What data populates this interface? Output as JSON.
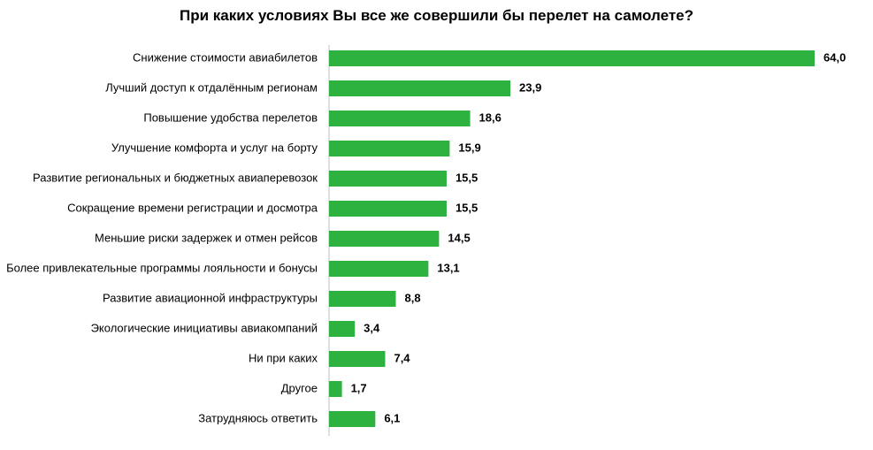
{
  "chart_data": {
    "type": "bar",
    "orientation": "horizontal",
    "title": "При каких условиях Вы все же совершили бы перелет на самолете?",
    "categories": [
      "Снижение стоимости авиабилетов",
      "Лучший доступ к отдалённым регионам",
      "Повышение удобства перелетов",
      "Улучшение комфорта и услуг на борту",
      "Развитие региональных и бюджетных авиаперевозок",
      "Сокращение времени регистрации и досмотра",
      "Меньшие риски задержек и отмен рейсов",
      "Более привлекательные программы лояльности и бонусы",
      "Развитие авиационной инфраструктуры",
      "Экологические инициативы авиакомпаний",
      "Ни при каких",
      "Другое",
      "Затрудняюсь ответить"
    ],
    "values": [
      64.0,
      23.9,
      18.6,
      15.9,
      15.5,
      15.5,
      14.5,
      13.1,
      8.8,
      3.4,
      7.4,
      1.7,
      6.1
    ],
    "value_labels": [
      "64,0",
      "23,9",
      "18,6",
      "15,9",
      "15,5",
      "15,5",
      "14,5",
      "13,1",
      "8,8",
      "3,4",
      "7,4",
      "1,7",
      "6,1"
    ],
    "xlim": [
      0,
      64
    ],
    "grid": false,
    "bar_color": "#2db13f"
  }
}
